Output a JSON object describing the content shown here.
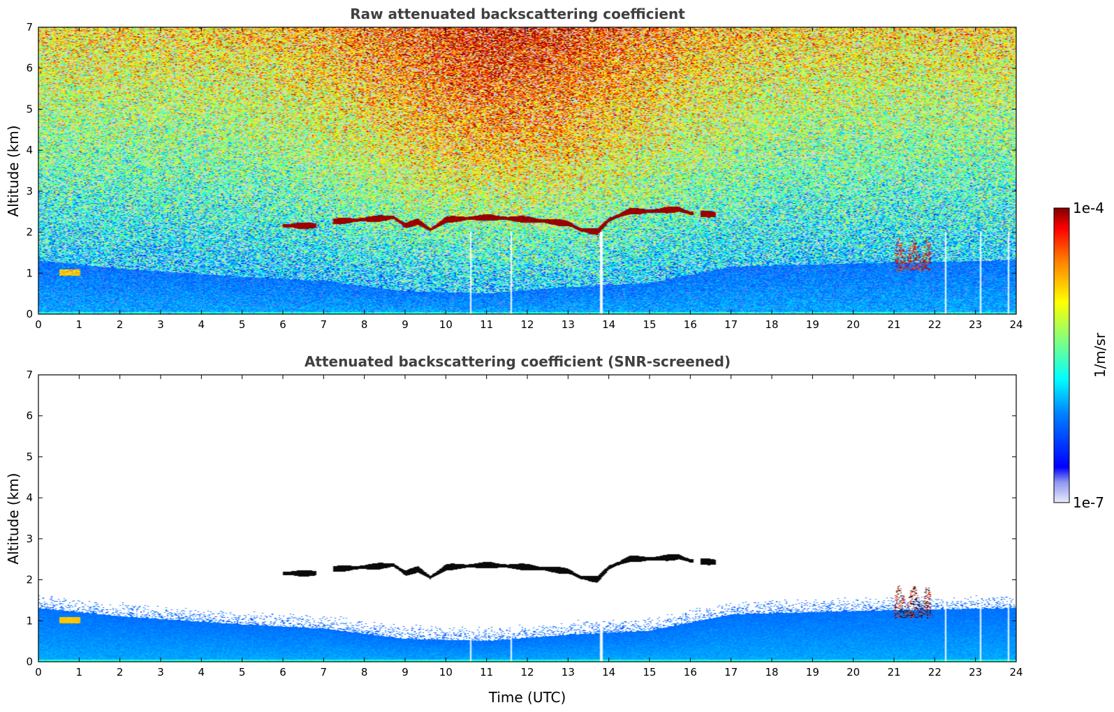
{
  "chart_data": [
    {
      "type": "heatmap",
      "title": "Raw attenuated backscattering coefficient",
      "xlabel": "",
      "ylabel": "Altitude (km)",
      "xlim": [
        0,
        24
      ],
      "ylim": [
        0,
        7
      ],
      "x_ticks": [
        "0",
        "1",
        "2",
        "3",
        "4",
        "5",
        "6",
        "7",
        "8",
        "9",
        "10",
        "11",
        "12",
        "13",
        "14",
        "15",
        "16",
        "17",
        "18",
        "19",
        "20",
        "21",
        "22",
        "23",
        "24"
      ],
      "y_ticks": [
        "0",
        "1",
        "2",
        "3",
        "4",
        "5",
        "6",
        "7"
      ],
      "screened": false,
      "cloud_layer": [
        {
          "x": 6.0,
          "alt": 2.15
        },
        {
          "x": 6.8,
          "alt": 2.15
        },
        {
          "x": 7.2,
          "alt": 2.25
        },
        {
          "x": 8.0,
          "alt": 2.3
        },
        {
          "x": 8.7,
          "alt": 2.35
        },
        {
          "x": 9.0,
          "alt": 2.15
        },
        {
          "x": 9.3,
          "alt": 2.25
        },
        {
          "x": 9.6,
          "alt": 2.05
        },
        {
          "x": 10.0,
          "alt": 2.3
        },
        {
          "x": 11.0,
          "alt": 2.35
        },
        {
          "x": 12.0,
          "alt": 2.3
        },
        {
          "x": 12.5,
          "alt": 2.25
        },
        {
          "x": 13.0,
          "alt": 2.2
        },
        {
          "x": 13.3,
          "alt": 2.05
        },
        {
          "x": 13.7,
          "alt": 2.0
        },
        {
          "x": 14.0,
          "alt": 2.3
        },
        {
          "x": 14.5,
          "alt": 2.5
        },
        {
          "x": 15.0,
          "alt": 2.5
        },
        {
          "x": 15.7,
          "alt": 2.55
        },
        {
          "x": 16.0,
          "alt": 2.45
        },
        {
          "x": 16.6,
          "alt": 2.42
        }
      ],
      "boundary_layer_top_km": [
        {
          "x": 0,
          "alt": 1.3
        },
        {
          "x": 2,
          "alt": 1.1
        },
        {
          "x": 5,
          "alt": 0.9
        },
        {
          "x": 7,
          "alt": 0.8
        },
        {
          "x": 9,
          "alt": 0.55
        },
        {
          "x": 11,
          "alt": 0.5
        },
        {
          "x": 13,
          "alt": 0.65
        },
        {
          "x": 15,
          "alt": 0.75
        },
        {
          "x": 17,
          "alt": 1.15
        },
        {
          "x": 19,
          "alt": 1.2
        },
        {
          "x": 21,
          "alt": 1.25
        },
        {
          "x": 24,
          "alt": 1.3
        }
      ],
      "data_gaps_utc": [
        10.6,
        11.6,
        13.8,
        22.25,
        23.1,
        23.8
      ]
    },
    {
      "type": "heatmap",
      "title": "Attenuated backscattering coefficient (SNR-screened)",
      "xlabel": "Time (UTC)",
      "ylabel": "Altitude (km)",
      "xlim": [
        0,
        24
      ],
      "ylim": [
        0,
        7
      ],
      "x_ticks": [
        "0",
        "1",
        "2",
        "3",
        "4",
        "5",
        "6",
        "7",
        "8",
        "9",
        "10",
        "11",
        "12",
        "13",
        "14",
        "15",
        "16",
        "17",
        "18",
        "19",
        "20",
        "21",
        "22",
        "23",
        "24"
      ],
      "y_ticks": [
        "0",
        "1",
        "2",
        "3",
        "4",
        "5",
        "6",
        "7"
      ],
      "screened": true,
      "data_gaps_utc": [
        10.6,
        11.6,
        13.8,
        22.25,
        23.1,
        23.8
      ]
    }
  ],
  "colorbar": {
    "label": "1/m/sr",
    "min_label": "1e-7",
    "max_label": "1e-4",
    "scale": "log",
    "range": [
      1e-07,
      0.0001
    ],
    "colormap": "jet"
  }
}
